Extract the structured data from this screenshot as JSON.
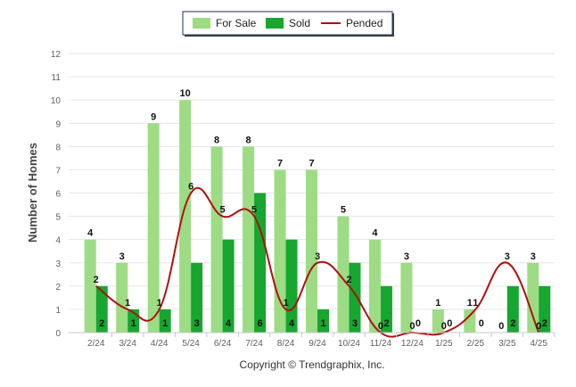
{
  "chart_data": {
    "type": "bar",
    "categories": [
      "2/24",
      "3/24",
      "4/24",
      "5/24",
      "6/24",
      "7/24",
      "8/24",
      "9/24",
      "10/24",
      "11/24",
      "12/24",
      "1/25",
      "2/25",
      "3/25",
      "4/25"
    ],
    "series": [
      {
        "name": "For Sale",
        "type": "bar",
        "color": "#9ddc84",
        "values": [
          4,
          3,
          9,
          10,
          8,
          8,
          7,
          7,
          5,
          4,
          3,
          1,
          1,
          0,
          3
        ]
      },
      {
        "name": "Sold",
        "type": "bar",
        "color": "#17a62f",
        "values": [
          2,
          1,
          1,
          3,
          4,
          6,
          4,
          1,
          3,
          2,
          0,
          0,
          0,
          2,
          2
        ]
      },
      {
        "name": "Pended",
        "type": "line",
        "color": "#b01010",
        "values": [
          2,
          1,
          1,
          6,
          5,
          5,
          1,
          3,
          2,
          0,
          0,
          0,
          1,
          3,
          0
        ]
      }
    ],
    "ylabel": "Number of Homes",
    "xlabel": "",
    "ylim": [
      0,
      12
    ],
    "yticks": [
      0,
      1,
      2,
      3,
      4,
      5,
      6,
      7,
      8,
      9,
      10,
      11,
      12
    ],
    "grid": true,
    "legend_position": "top-center"
  },
  "credit": "Copyright © Trendgraphix, Inc."
}
